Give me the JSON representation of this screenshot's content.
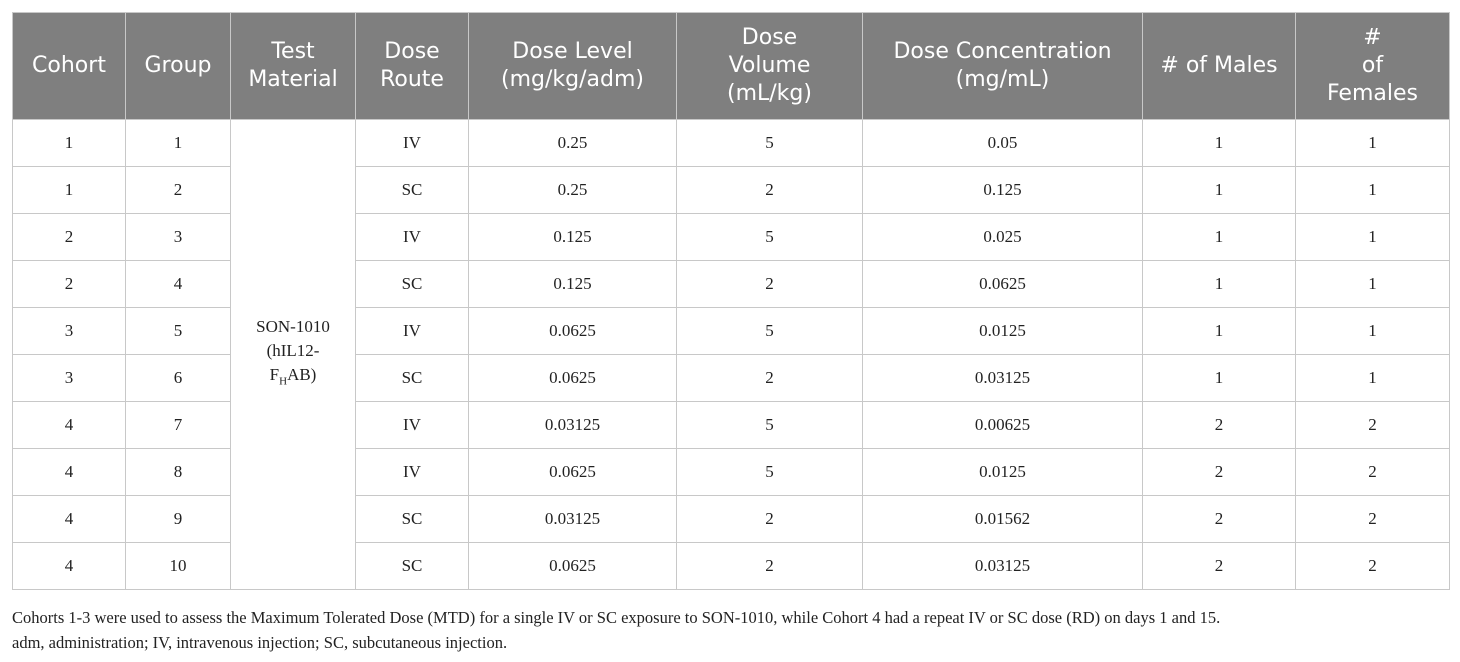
{
  "table": {
    "headers": [
      [
        "Cohort"
      ],
      [
        "Group"
      ],
      [
        "Test",
        "Material"
      ],
      [
        "Dose",
        "Route"
      ],
      [
        "Dose Level",
        "(mg/kg/adm)"
      ],
      [
        "Dose",
        "Volume",
        "(mL/kg)"
      ],
      [
        "Dose Concentration",
        "(mg/mL)"
      ],
      [
        "# of Males"
      ],
      [
        "#",
        "of",
        "Females"
      ]
    ],
    "test_material": {
      "lines": [
        "SON-1010",
        "(hIL12-"
      ],
      "last_line": {
        "base": "F",
        "sub": "H",
        "rest": "AB)"
      }
    },
    "rows": [
      [
        1,
        1,
        "IV",
        0.25,
        5,
        0.05,
        1,
        1
      ],
      [
        1,
        2,
        "SC",
        0.25,
        2,
        0.125,
        1,
        1
      ],
      [
        2,
        3,
        "IV",
        0.125,
        5,
        0.025,
        1,
        1
      ],
      [
        2,
        4,
        "SC",
        0.125,
        2,
        0.0625,
        1,
        1
      ],
      [
        3,
        5,
        "IV",
        0.0625,
        5,
        0.0125,
        1,
        1
      ],
      [
        3,
        6,
        "SC",
        0.0625,
        2,
        0.03125,
        1,
        1
      ],
      [
        4,
        7,
        "IV",
        0.03125,
        5,
        0.00625,
        2,
        2
      ],
      [
        4,
        8,
        "IV",
        0.0625,
        5,
        0.0125,
        2,
        2
      ],
      [
        4,
        9,
        "SC",
        0.03125,
        2,
        0.01562,
        2,
        2
      ],
      [
        4,
        10,
        "SC",
        0.0625,
        2,
        0.03125,
        2,
        2
      ]
    ]
  },
  "footnotes": [
    "Cohorts 1-3 were used to assess the Maximum Tolerated Dose (MTD) for a single IV or SC exposure to SON-1010, while Cohort 4 had a repeat IV or SC dose (RD) on days 1 and 15.",
    "adm, administration; IV, intravenous injection; SC, subcutaneous injection."
  ]
}
